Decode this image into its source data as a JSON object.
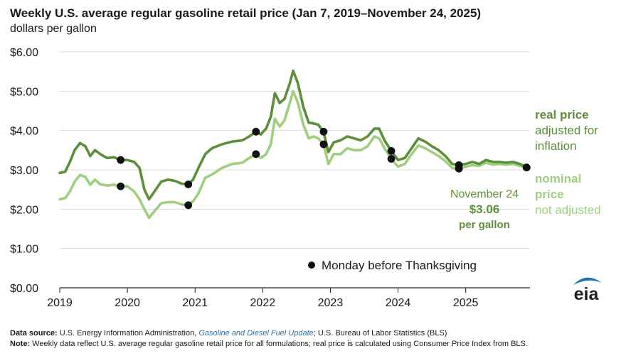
{
  "chart_data": {
    "type": "line",
    "title": "Weekly U.S. average regular gasoline retail price (Jan 7, 2019–November 24, 2025)",
    "ylabel": "dollars per gallon",
    "ylim": [
      0,
      6
    ],
    "yticks": [
      "$6.00",
      "$5.00",
      "$4.00",
      "$3.00",
      "$2.00",
      "$1.00",
      "$0.00"
    ],
    "xticks": [
      "2019",
      "2020",
      "2021",
      "2022",
      "2023",
      "2024",
      "2025"
    ],
    "xlim": [
      2019.0,
      2025.95
    ],
    "grid": "horizontal",
    "series": [
      {
        "name": "real price",
        "label_lines": [
          "real price",
          "adjusted for",
          "inflation"
        ],
        "color": "#5d8f3a",
        "points": [
          [
            2019.0,
            2.92
          ],
          [
            2019.08,
            2.95
          ],
          [
            2019.15,
            3.2
          ],
          [
            2019.22,
            3.5
          ],
          [
            2019.3,
            3.68
          ],
          [
            2019.38,
            3.6
          ],
          [
            2019.45,
            3.35
          ],
          [
            2019.52,
            3.5
          ],
          [
            2019.6,
            3.4
          ],
          [
            2019.7,
            3.3
          ],
          [
            2019.8,
            3.32
          ],
          [
            2019.9,
            3.25
          ],
          [
            2020.0,
            3.25
          ],
          [
            2020.1,
            3.2
          ],
          [
            2020.18,
            3.05
          ],
          [
            2020.25,
            2.5
          ],
          [
            2020.32,
            2.25
          ],
          [
            2020.4,
            2.45
          ],
          [
            2020.5,
            2.7
          ],
          [
            2020.6,
            2.75
          ],
          [
            2020.7,
            2.72
          ],
          [
            2020.8,
            2.65
          ],
          [
            2020.9,
            2.63
          ],
          [
            2020.97,
            2.75
          ],
          [
            2021.05,
            3.05
          ],
          [
            2021.15,
            3.4
          ],
          [
            2021.25,
            3.55
          ],
          [
            2021.4,
            3.65
          ],
          [
            2021.55,
            3.72
          ],
          [
            2021.7,
            3.75
          ],
          [
            2021.8,
            3.85
          ],
          [
            2021.9,
            3.97
          ],
          [
            2021.97,
            3.9
          ],
          [
            2022.05,
            4.05
          ],
          [
            2022.12,
            4.35
          ],
          [
            2022.18,
            4.95
          ],
          [
            2022.25,
            4.7
          ],
          [
            2022.32,
            4.8
          ],
          [
            2022.4,
            5.2
          ],
          [
            2022.45,
            5.52
          ],
          [
            2022.52,
            5.2
          ],
          [
            2022.6,
            4.6
          ],
          [
            2022.68,
            4.2
          ],
          [
            2022.75,
            4.18
          ],
          [
            2022.82,
            4.15
          ],
          [
            2022.9,
            3.97
          ],
          [
            2022.97,
            3.45
          ],
          [
            2023.05,
            3.7
          ],
          [
            2023.15,
            3.75
          ],
          [
            2023.25,
            3.85
          ],
          [
            2023.35,
            3.8
          ],
          [
            2023.45,
            3.75
          ],
          [
            2023.55,
            3.85
          ],
          [
            2023.65,
            4.05
          ],
          [
            2023.72,
            4.05
          ],
          [
            2023.8,
            3.75
          ],
          [
            2023.9,
            3.48
          ],
          [
            2024.0,
            3.25
          ],
          [
            2024.1,
            3.3
          ],
          [
            2024.2,
            3.55
          ],
          [
            2024.3,
            3.8
          ],
          [
            2024.4,
            3.72
          ],
          [
            2024.5,
            3.6
          ],
          [
            2024.6,
            3.5
          ],
          [
            2024.7,
            3.35
          ],
          [
            2024.8,
            3.15
          ],
          [
            2024.9,
            3.12
          ],
          [
            2025.0,
            3.15
          ],
          [
            2025.1,
            3.2
          ],
          [
            2025.2,
            3.15
          ],
          [
            2025.3,
            3.25
          ],
          [
            2025.4,
            3.2
          ],
          [
            2025.5,
            3.2
          ],
          [
            2025.6,
            3.18
          ],
          [
            2025.7,
            3.2
          ],
          [
            2025.8,
            3.15
          ],
          [
            2025.9,
            3.06
          ]
        ],
        "thanksgiving_points": [
          [
            2019.9,
            3.25
          ],
          [
            2020.9,
            2.63
          ],
          [
            2021.9,
            3.97
          ],
          [
            2022.9,
            3.97
          ],
          [
            2023.9,
            3.48
          ],
          [
            2024.9,
            3.12
          ],
          [
            2025.9,
            3.06
          ]
        ]
      },
      {
        "name": "nominal price",
        "label_lines": [
          "nominal",
          "price",
          "not adjusted"
        ],
        "color": "#9fcf7e",
        "points": [
          [
            2019.0,
            2.25
          ],
          [
            2019.08,
            2.28
          ],
          [
            2019.15,
            2.45
          ],
          [
            2019.22,
            2.7
          ],
          [
            2019.3,
            2.87
          ],
          [
            2019.38,
            2.82
          ],
          [
            2019.45,
            2.62
          ],
          [
            2019.52,
            2.75
          ],
          [
            2019.6,
            2.63
          ],
          [
            2019.7,
            2.6
          ],
          [
            2019.8,
            2.62
          ],
          [
            2019.9,
            2.58
          ],
          [
            2020.0,
            2.58
          ],
          [
            2020.1,
            2.45
          ],
          [
            2020.18,
            2.25
          ],
          [
            2020.25,
            2.0
          ],
          [
            2020.32,
            1.78
          ],
          [
            2020.4,
            1.95
          ],
          [
            2020.5,
            2.15
          ],
          [
            2020.6,
            2.18
          ],
          [
            2020.7,
            2.18
          ],
          [
            2020.8,
            2.12
          ],
          [
            2020.9,
            2.1
          ],
          [
            2020.97,
            2.2
          ],
          [
            2021.05,
            2.4
          ],
          [
            2021.15,
            2.8
          ],
          [
            2021.25,
            2.88
          ],
          [
            2021.4,
            3.05
          ],
          [
            2021.55,
            3.15
          ],
          [
            2021.7,
            3.18
          ],
          [
            2021.8,
            3.3
          ],
          [
            2021.9,
            3.4
          ],
          [
            2021.97,
            3.3
          ],
          [
            2022.05,
            3.4
          ],
          [
            2022.12,
            3.65
          ],
          [
            2022.18,
            4.3
          ],
          [
            2022.25,
            4.1
          ],
          [
            2022.32,
            4.25
          ],
          [
            2022.4,
            4.7
          ],
          [
            2022.45,
            5.0
          ],
          [
            2022.52,
            4.7
          ],
          [
            2022.6,
            4.15
          ],
          [
            2022.68,
            3.8
          ],
          [
            2022.75,
            3.85
          ],
          [
            2022.82,
            3.8
          ],
          [
            2022.9,
            3.65
          ],
          [
            2022.97,
            3.15
          ],
          [
            2023.05,
            3.4
          ],
          [
            2023.15,
            3.4
          ],
          [
            2023.25,
            3.55
          ],
          [
            2023.35,
            3.5
          ],
          [
            2023.45,
            3.5
          ],
          [
            2023.55,
            3.6
          ],
          [
            2023.65,
            3.85
          ],
          [
            2023.72,
            3.8
          ],
          [
            2023.8,
            3.55
          ],
          [
            2023.9,
            3.28
          ],
          [
            2024.0,
            3.08
          ],
          [
            2024.1,
            3.15
          ],
          [
            2024.2,
            3.4
          ],
          [
            2024.3,
            3.62
          ],
          [
            2024.4,
            3.55
          ],
          [
            2024.5,
            3.45
          ],
          [
            2024.6,
            3.35
          ],
          [
            2024.7,
            3.22
          ],
          [
            2024.8,
            3.05
          ],
          [
            2024.9,
            3.03
          ],
          [
            2025.0,
            3.08
          ],
          [
            2025.1,
            3.12
          ],
          [
            2025.2,
            3.1
          ],
          [
            2025.3,
            3.18
          ],
          [
            2025.4,
            3.13
          ],
          [
            2025.5,
            3.15
          ],
          [
            2025.6,
            3.13
          ],
          [
            2025.7,
            3.15
          ],
          [
            2025.8,
            3.1
          ],
          [
            2025.9,
            3.06
          ]
        ],
        "thanksgiving_points": [
          [
            2019.9,
            2.58
          ],
          [
            2020.9,
            2.1
          ],
          [
            2021.9,
            3.4
          ],
          [
            2022.9,
            3.65
          ],
          [
            2023.9,
            3.28
          ],
          [
            2024.9,
            3.03
          ],
          [
            2025.9,
            3.06
          ]
        ]
      }
    ],
    "legend": {
      "marker_label": "Monday before Thanksgiving",
      "placement": "bottom-center"
    },
    "annotation": {
      "lines": [
        "November 24",
        "$3.06",
        "per gallon"
      ],
      "color": "#5d8f3a"
    }
  },
  "footer": {
    "source_label": "Data source:",
    "source_text_1": " U.S. Energy Information Administration, ",
    "source_link": "Gasoline and Diesel Fuel Update",
    "source_text_2": "; U.S. Bureau of Labor Statistics (BLS)",
    "note_label": "Note:",
    "note_text": " Weekly data reflect U.S. average regular gasoline retail price for all formulations; real price is calculated using Consumer Price Index from BLS."
  },
  "logo": {
    "text": "eia",
    "arc_color": "#1a73b6"
  }
}
